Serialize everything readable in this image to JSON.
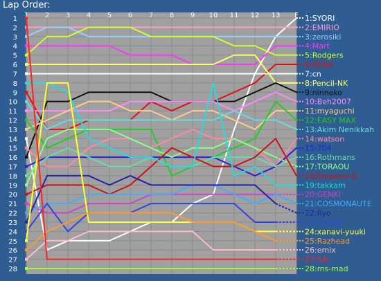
{
  "chart_data": {
    "type": "line",
    "title": "Lap Order:",
    "x_labels": [
      "1",
      "2",
      "3",
      "4",
      "5",
      "6",
      "7",
      "8",
      "9",
      "10",
      "11",
      "12",
      "13",
      "F"
    ],
    "y_labels": [
      "1",
      "2",
      "3",
      "4",
      "5",
      "6",
      "7",
      "8",
      "9",
      "10",
      "11",
      "12",
      "13",
      "14",
      "15",
      "16",
      "17",
      "18",
      "19",
      "20",
      "21",
      "22",
      "23",
      "24",
      "25",
      "26",
      "27",
      "28"
    ],
    "ylim": [
      1,
      28
    ],
    "y_inverted": true,
    "grid": true,
    "legend_position": "right",
    "series": [
      {
        "name": "1:SYORI",
        "color": "#ffffff",
        "positions": [
          14,
          26,
          25,
          25,
          25,
          24,
          23,
          23,
          21,
          20,
          13,
          7,
          3,
          1
        ],
        "dashed_tail": false
      },
      {
        "name": "2:EMIRIO",
        "color": "#ff99cc",
        "positions": [
          2,
          2,
          2,
          2,
          2,
          2,
          2,
          2,
          2,
          2,
          2,
          2,
          2,
          2
        ],
        "dashed_tail": false
      },
      {
        "name": "3:zerosiki",
        "color": "#99ccff",
        "positions": [
          3,
          2,
          2,
          3,
          3,
          3,
          3,
          3,
          3,
          3,
          3,
          3,
          3,
          3
        ],
        "dashed_tail": false
      },
      {
        "name": "4:Mart",
        "color": "#ff33ff",
        "positions": [
          4,
          4,
          4,
          4,
          4,
          5,
          5,
          5,
          6,
          6,
          6,
          6,
          4,
          4
        ],
        "dashed_tail": false
      },
      {
        "name": "5:Rodgers",
        "color": "#ccff33",
        "positions": [
          5,
          3,
          3,
          2,
          2,
          2,
          3,
          3,
          3,
          3,
          4,
          4,
          5,
          5
        ],
        "dashed_tail": false
      },
      {
        "name": "6:KOBA",
        "color": "#dd1111",
        "positions": [
          9,
          13,
          13,
          12,
          12,
          12,
          10,
          11,
          10,
          10,
          9,
          8,
          6,
          6
        ],
        "dashed_tail": false
      },
      {
        "name": "7:cn",
        "color": "#ffffff",
        "positions": [
          7,
          7,
          7,
          7,
          7,
          7,
          7,
          7,
          7,
          7,
          7,
          7,
          7,
          7
        ],
        "dashed_tail": false
      },
      {
        "name": "8:Pencil-NK",
        "color": "#ffff66",
        "positions": [
          6,
          6,
          6,
          6,
          6,
          6,
          6,
          6,
          6,
          6,
          5,
          5,
          8,
          8
        ],
        "dashed_tail": false
      },
      {
        "name": "9:ninneko",
        "color": "#111111",
        "positions": [
          16,
          10,
          10,
          9,
          9,
          9,
          9,
          10,
          10,
          10,
          10,
          9,
          8,
          9
        ],
        "dashed_tail": false
      },
      {
        "name": "10:Beh2007",
        "color": "#ff88ff",
        "positions": [
          11,
          11,
          11,
          11,
          11,
          10,
          10,
          10,
          10,
          10,
          11,
          10,
          9,
          10
        ],
        "dashed_tail": false
      },
      {
        "name": "11:myaguchi",
        "color": "#ffcc88",
        "positions": [
          13,
          12,
          11,
          10,
          10,
          11,
          11,
          12,
          11,
          11,
          12,
          13,
          11,
          11
        ],
        "dashed_tail": false
      },
      {
        "name": "12:EASY MAX",
        "color": "#22cc22",
        "positions": [
          12,
          15,
          14,
          13,
          13,
          13,
          13,
          18,
          17,
          16,
          15,
          14,
          10,
          12
        ],
        "dashed_tail": false
      },
      {
        "name": "13:Akim Nenikkah",
        "color": "#66dddd",
        "positions": [
          10,
          13,
          12,
          12,
          12,
          12,
          12,
          12,
          12,
          12,
          11,
          12,
          12,
          13
        ],
        "dashed_tail": false
      },
      {
        "name": "14:watson",
        "color": "#ff88aa",
        "positions": [
          15,
          17,
          17,
          15,
          14,
          14,
          15,
          14,
          13,
          14,
          14,
          15,
          17,
          14
        ],
        "dashed_tail": false
      },
      {
        "name": "15:704",
        "color": "#2222dd",
        "positions": [
          17,
          16,
          16,
          16,
          16,
          16,
          16,
          16,
          16,
          16,
          17,
          18,
          17,
          15
        ],
        "dashed_tail": false
      },
      {
        "name": "16:Rothmans",
        "color": "#66ddaa",
        "positions": [
          18,
          16,
          15,
          16,
          17,
          17,
          16,
          17,
          17,
          16,
          16,
          16,
          17,
          16
        ],
        "dashed_tail": false
      },
      {
        "name": "17:TORAOU",
        "color": "#88ff88",
        "positions": [
          19,
          14,
          13,
          13,
          13,
          14,
          15,
          16,
          15,
          15,
          14,
          15,
          16,
          17
        ],
        "dashed_tail": true
      },
      {
        "name": "18:Emperor-D",
        "color": "#cc1111",
        "positions": [
          20,
          19,
          19,
          19,
          20,
          19,
          17,
          15,
          16,
          17,
          17,
          16,
          14,
          18
        ],
        "dashed_tail": false
      },
      {
        "name": "19:takkam",
        "color": "#22dddd",
        "positions": [
          8,
          8,
          9,
          14,
          15,
          16,
          16,
          17,
          17,
          8,
          18,
          17,
          19,
          19
        ],
        "dashed_tail": false
      },
      {
        "name": "20:GENKI",
        "color": "#cc44cc",
        "positions": [
          21,
          22,
          22,
          21,
          21,
          21,
          20,
          20,
          20,
          20,
          20,
          20,
          20,
          20
        ],
        "dashed_tail": true
      },
      {
        "name": "21:COSMONAUTE",
        "color": "#44aaff",
        "positions": [
          22,
          21,
          21,
          20,
          20,
          20,
          20,
          20,
          19,
          19,
          20,
          21,
          20,
          21
        ],
        "dashed_tail": false
      },
      {
        "name": "22:Ryo",
        "color": "#2222aa",
        "positions": [
          23,
          18,
          18,
          18,
          19,
          18,
          19,
          19,
          19,
          19,
          19,
          19,
          21,
          22
        ],
        "dashed_tail": true
      },
      {
        "name": "23:Dream",
        "color": "#3344dd",
        "positions": [
          24,
          21,
          24,
          22,
          22,
          22,
          21,
          21,
          21,
          21,
          21,
          23,
          23,
          23
        ],
        "dashed_tail": true
      },
      {
        "name": "24:xanavi-yuuki",
        "color": "#ffff33",
        "positions": [
          25,
          8,
          8,
          23,
          23,
          23,
          23,
          23,
          23,
          23,
          23,
          24,
          24,
          24
        ],
        "dashed_tail": true
      },
      {
        "name": "25:Razhead",
        "color": "#ff9933",
        "positions": [
          26,
          24,
          23,
          22,
          22,
          22,
          22,
          22,
          23,
          23,
          23,
          24,
          25,
          25
        ],
        "dashed_tail": true
      },
      {
        "name": "26:emix",
        "color": "#ffbbcc",
        "positions": [
          27,
          25,
          25,
          24,
          24,
          24,
          24,
          24,
          24,
          26,
          26,
          26,
          26,
          26
        ],
        "dashed_tail": true
      },
      {
        "name": "27:SAi",
        "color": "#ff2222",
        "positions": [
          1,
          27,
          27,
          27,
          27,
          27,
          27,
          27,
          27,
          27,
          27,
          27,
          27,
          27
        ],
        "dashed_tail": true
      },
      {
        "name": "28:ms-mad",
        "color": "#99ff33",
        "positions": [
          28,
          28,
          28,
          28,
          28,
          28,
          28,
          28,
          28,
          28,
          28,
          28,
          28,
          28
        ],
        "dashed_tail": true
      }
    ]
  }
}
